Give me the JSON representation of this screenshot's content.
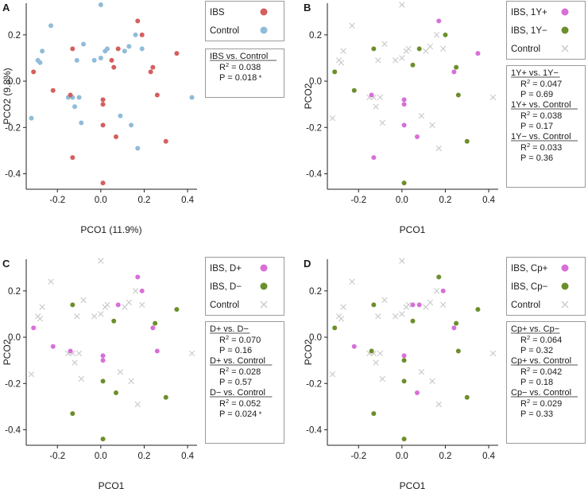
{
  "colors": {
    "ibs": "#d45f5f",
    "control": "#8fbcd9",
    "pos": "#d86fd8",
    "neg": "#6b8f2b",
    "control_x": "#c8c8c8"
  },
  "chart_data": [
    {
      "panel": "A",
      "type": "scatter",
      "xlabel": "PCO1 (11.9%)",
      "ylabel": "PCO2 (9.8%)",
      "xlim": [
        -0.34,
        0.44
      ],
      "ylim": [
        -0.46,
        0.33
      ],
      "xticks": [
        "-0.2",
        "0.0",
        "0.2",
        "0.4"
      ],
      "yticks": [
        "0.2",
        "0.0",
        "-0.2",
        "-0.4"
      ],
      "legend": [
        {
          "label": "IBS",
          "group": "ibs",
          "marker": "dot"
        },
        {
          "label": "Control",
          "group": "control",
          "marker": "dot"
        }
      ],
      "stats": [
        {
          "title": "IBS vs. Control",
          "r2": "0.038",
          "p": "0.018",
          "sig": "*"
        }
      ],
      "series": [
        {
          "group": "ibs",
          "points": [
            [
              -0.31,
              0.04
            ],
            [
              -0.22,
              -0.04
            ],
            [
              -0.14,
              -0.06
            ],
            [
              -0.13,
              0.14
            ],
            [
              -0.13,
              -0.33
            ],
            [
              0.01,
              -0.08
            ],
            [
              0.01,
              -0.1
            ],
            [
              0.01,
              -0.19
            ],
            [
              0.01,
              -0.44
            ],
            [
              0.05,
              0.09
            ],
            [
              0.06,
              0.06
            ],
            [
              0.07,
              -0.24
            ],
            [
              0.08,
              0.14
            ],
            [
              0.17,
              0.26
            ],
            [
              0.19,
              0.2
            ],
            [
              0.23,
              0.04
            ],
            [
              0.24,
              0.06
            ],
            [
              0.26,
              -0.06
            ],
            [
              0.3,
              -0.26
            ],
            [
              0.35,
              0.12
            ]
          ]
        },
        {
          "group": "control",
          "points": [
            [
              -0.32,
              -0.16
            ],
            [
              -0.29,
              0.09
            ],
            [
              -0.28,
              0.08
            ],
            [
              -0.27,
              0.13
            ],
            [
              -0.23,
              0.24
            ],
            [
              -0.15,
              -0.07
            ],
            [
              -0.13,
              -0.07
            ],
            [
              -0.12,
              -0.11
            ],
            [
              -0.11,
              0.09
            ],
            [
              -0.1,
              -0.07
            ],
            [
              -0.09,
              -0.18
            ],
            [
              -0.08,
              0.16
            ],
            [
              -0.03,
              0.09
            ],
            [
              0.0,
              0.33
            ],
            [
              0.0,
              0.1
            ],
            [
              0.02,
              0.13
            ],
            [
              0.03,
              0.14
            ],
            [
              0.09,
              -0.15
            ],
            [
              0.11,
              0.13
            ],
            [
              0.13,
              0.15
            ],
            [
              0.14,
              -0.19
            ],
            [
              0.16,
              0.2
            ],
            [
              0.17,
              -0.29
            ],
            [
              0.19,
              0.14
            ],
            [
              0.42,
              -0.07
            ]
          ]
        }
      ]
    },
    {
      "panel": "B",
      "type": "scatter",
      "xlabel": "PCO1",
      "ylabel": "PCO2",
      "xlim": [
        -0.34,
        0.44
      ],
      "ylim": [
        -0.46,
        0.33
      ],
      "xticks": [
        "-0.2",
        "0.0",
        "0.2",
        "0.4"
      ],
      "yticks": [
        "0.2",
        "0.0",
        "-0.2",
        "-0.4"
      ],
      "legend": [
        {
          "label": "IBS, 1Y+",
          "group": "pos",
          "marker": "dot"
        },
        {
          "label": "IBS, 1Y−",
          "group": "neg",
          "marker": "dot"
        },
        {
          "label": "Control",
          "group": "control_x",
          "marker": "x"
        }
      ],
      "stats": [
        {
          "title": "1Y+ vs. 1Y−",
          "r2": "0.047",
          "p": "0.69",
          "sig": ""
        },
        {
          "title": "1Y+ vs. Control",
          "r2": "0.038",
          "p": "0.17",
          "sig": ""
        },
        {
          "title": "1Y− vs. Control",
          "r2": "0.033",
          "p": "0.36",
          "sig": ""
        }
      ],
      "series": [
        {
          "group": "pos",
          "points": [
            [
              -0.14,
              -0.06
            ],
            [
              -0.13,
              -0.33
            ],
            [
              0.01,
              -0.08
            ],
            [
              0.01,
              -0.1
            ],
            [
              0.01,
              -0.19
            ],
            [
              0.07,
              -0.24
            ],
            [
              0.17,
              0.26
            ],
            [
              0.24,
              0.04
            ],
            [
              0.35,
              0.12
            ]
          ]
        },
        {
          "group": "neg",
          "points": [
            [
              -0.31,
              0.04
            ],
            [
              -0.22,
              -0.04
            ],
            [
              -0.13,
              0.14
            ],
            [
              0.01,
              -0.44
            ],
            [
              0.05,
              0.07
            ],
            [
              0.08,
              0.14
            ],
            [
              0.2,
              0.2
            ],
            [
              0.25,
              0.06
            ],
            [
              0.26,
              -0.06
            ],
            [
              0.3,
              -0.26
            ]
          ]
        },
        {
          "group": "control_x",
          "points": [
            [
              -0.32,
              -0.16
            ],
            [
              -0.29,
              0.09
            ],
            [
              -0.28,
              0.08
            ],
            [
              -0.27,
              0.13
            ],
            [
              -0.23,
              0.24
            ],
            [
              -0.15,
              -0.07
            ],
            [
              -0.13,
              -0.07
            ],
            [
              -0.12,
              -0.11
            ],
            [
              -0.11,
              0.09
            ],
            [
              -0.1,
              -0.07
            ],
            [
              -0.09,
              -0.18
            ],
            [
              -0.08,
              0.16
            ],
            [
              -0.03,
              0.09
            ],
            [
              0.0,
              0.33
            ],
            [
              0.0,
              0.1
            ],
            [
              0.02,
              0.13
            ],
            [
              0.03,
              0.14
            ],
            [
              0.09,
              -0.15
            ],
            [
              0.11,
              0.13
            ],
            [
              0.13,
              0.15
            ],
            [
              0.14,
              -0.19
            ],
            [
              0.16,
              0.2
            ],
            [
              0.17,
              -0.29
            ],
            [
              0.19,
              0.14
            ],
            [
              0.42,
              -0.07
            ]
          ]
        }
      ]
    },
    {
      "panel": "C",
      "type": "scatter",
      "xlabel": "PCO1",
      "ylabel": "PCO2",
      "xlim": [
        -0.34,
        0.44
      ],
      "ylim": [
        -0.46,
        0.33
      ],
      "xticks": [
        "-0.2",
        "0.0",
        "0.2",
        "0.4"
      ],
      "yticks": [
        "0.2",
        "0.0",
        "-0.2",
        "-0.4"
      ],
      "legend": [
        {
          "label": "IBS, D+",
          "group": "pos",
          "marker": "dot"
        },
        {
          "label": "IBS, D−",
          "group": "neg",
          "marker": "dot"
        },
        {
          "label": "Control",
          "group": "control_x",
          "marker": "x"
        }
      ],
      "stats": [
        {
          "title": "D+ vs. D−",
          "r2": "0.070",
          "p": "0.16",
          "sig": ""
        },
        {
          "title": "D+ vs. Control",
          "r2": "0.028",
          "p": "0.57",
          "sig": ""
        },
        {
          "title": "D− vs. Control",
          "r2": "0.052",
          "p": "0.024",
          "sig": "*"
        }
      ],
      "series": [
        {
          "group": "pos",
          "points": [
            [
              -0.31,
              0.04
            ],
            [
              -0.22,
              -0.04
            ],
            [
              -0.14,
              -0.06
            ],
            [
              0.01,
              -0.08
            ],
            [
              0.01,
              -0.1
            ],
            [
              0.08,
              0.14
            ],
            [
              0.17,
              0.26
            ],
            [
              0.19,
              0.2
            ],
            [
              0.24,
              0.04
            ],
            [
              0.26,
              -0.06
            ]
          ]
        },
        {
          "group": "neg",
          "points": [
            [
              -0.13,
              0.14
            ],
            [
              -0.13,
              -0.33
            ],
            [
              0.01,
              -0.19
            ],
            [
              0.01,
              -0.44
            ],
            [
              0.06,
              0.07
            ],
            [
              0.07,
              -0.24
            ],
            [
              0.25,
              0.06
            ],
            [
              0.3,
              -0.26
            ],
            [
              0.35,
              0.12
            ]
          ]
        },
        {
          "group": "control_x",
          "points": [
            [
              -0.32,
              -0.16
            ],
            [
              -0.29,
              0.09
            ],
            [
              -0.28,
              0.08
            ],
            [
              -0.27,
              0.13
            ],
            [
              -0.23,
              0.24
            ],
            [
              -0.15,
              -0.07
            ],
            [
              -0.13,
              -0.07
            ],
            [
              -0.12,
              -0.11
            ],
            [
              -0.11,
              0.09
            ],
            [
              -0.1,
              -0.07
            ],
            [
              -0.09,
              -0.18
            ],
            [
              -0.08,
              0.16
            ],
            [
              -0.03,
              0.09
            ],
            [
              0.0,
              0.33
            ],
            [
              0.0,
              0.1
            ],
            [
              0.02,
              0.13
            ],
            [
              0.03,
              0.14
            ],
            [
              0.09,
              -0.15
            ],
            [
              0.11,
              0.13
            ],
            [
              0.13,
              0.15
            ],
            [
              0.14,
              -0.19
            ],
            [
              0.16,
              0.2
            ],
            [
              0.17,
              -0.29
            ],
            [
              0.19,
              0.14
            ],
            [
              0.42,
              -0.07
            ]
          ]
        }
      ]
    },
    {
      "panel": "D",
      "type": "scatter",
      "xlabel": "PCO1",
      "ylabel": "PCO2",
      "xlim": [
        -0.34,
        0.44
      ],
      "ylim": [
        -0.46,
        0.33
      ],
      "xticks": [
        "-0.2",
        "0.0",
        "0.2",
        "0.4"
      ],
      "yticks": [
        "0.2",
        "0.0",
        "-0.2",
        "-0.4"
      ],
      "legend": [
        {
          "label": "IBS, Cp+",
          "group": "pos",
          "marker": "dot"
        },
        {
          "label": "IBS, Cp−",
          "group": "neg",
          "marker": "dot"
        },
        {
          "label": "Control",
          "group": "control_x",
          "marker": "x"
        }
      ],
      "stats": [
        {
          "title": "Cp+ vs. Cp−",
          "r2": "0.064",
          "p": "0.32",
          "sig": ""
        },
        {
          "title": "Cp+ vs. Control",
          "r2": "0.042",
          "p": "0.18",
          "sig": ""
        },
        {
          "title": "Cp− vs. Control",
          "r2": "0.029",
          "p": "0.33",
          "sig": ""
        }
      ],
      "series": [
        {
          "group": "pos",
          "points": [
            [
              -0.22,
              -0.04
            ],
            [
              0.01,
              -0.08
            ],
            [
              0.05,
              0.14
            ],
            [
              0.07,
              -0.24
            ],
            [
              0.08,
              0.14
            ],
            [
              0.19,
              0.2
            ],
            [
              0.24,
              0.04
            ]
          ]
        },
        {
          "group": "neg",
          "points": [
            [
              -0.31,
              0.04
            ],
            [
              -0.14,
              -0.06
            ],
            [
              -0.13,
              0.14
            ],
            [
              -0.13,
              -0.33
            ],
            [
              0.01,
              -0.1
            ],
            [
              0.01,
              -0.19
            ],
            [
              0.01,
              -0.44
            ],
            [
              0.05,
              0.07
            ],
            [
              0.17,
              0.26
            ],
            [
              0.25,
              0.06
            ],
            [
              0.26,
              -0.06
            ],
            [
              0.3,
              -0.26
            ],
            [
              0.35,
              0.12
            ]
          ]
        },
        {
          "group": "control_x",
          "points": [
            [
              -0.32,
              -0.16
            ],
            [
              -0.29,
              0.09
            ],
            [
              -0.28,
              0.08
            ],
            [
              -0.27,
              0.13
            ],
            [
              -0.23,
              0.24
            ],
            [
              -0.15,
              -0.07
            ],
            [
              -0.13,
              -0.07
            ],
            [
              -0.12,
              -0.11
            ],
            [
              -0.11,
              0.09
            ],
            [
              -0.1,
              -0.07
            ],
            [
              -0.09,
              -0.18
            ],
            [
              -0.08,
              0.16
            ],
            [
              -0.03,
              0.09
            ],
            [
              0.0,
              0.33
            ],
            [
              0.0,
              0.1
            ],
            [
              0.02,
              0.13
            ],
            [
              0.03,
              0.14
            ],
            [
              0.09,
              -0.15
            ],
            [
              0.11,
              0.13
            ],
            [
              0.13,
              0.15
            ],
            [
              0.14,
              -0.19
            ],
            [
              0.16,
              0.2
            ],
            [
              0.17,
              -0.29
            ],
            [
              0.19,
              0.14
            ],
            [
              0.42,
              -0.07
            ]
          ]
        }
      ]
    }
  ]
}
